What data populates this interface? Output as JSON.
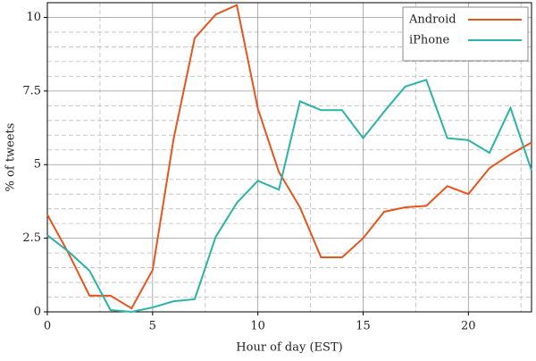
{
  "chart_data": {
    "type": "line",
    "xlabel": "Hour of day (EST)",
    "ylabel": "% of tweets",
    "x": [
      0,
      1,
      2,
      3,
      4,
      5,
      6,
      7,
      8,
      9,
      10,
      11,
      12,
      13,
      14,
      15,
      16,
      17,
      18,
      19,
      20,
      21,
      22,
      23
    ],
    "series": [
      {
        "name": "Android",
        "color": "#e8541e",
        "values": [
          3.3,
          2.0,
          0.55,
          0.55,
          0.12,
          1.42,
          5.88,
          9.3,
          10.1,
          10.42,
          6.9,
          4.75,
          3.55,
          1.85,
          1.85,
          2.5,
          3.4,
          3.55,
          3.6,
          4.27,
          4.0,
          4.88,
          5.35,
          5.75
        ]
      },
      {
        "name": "iPhone",
        "color": "#2ab3a6",
        "values": [
          2.6,
          2.05,
          1.4,
          0.06,
          0.0,
          0.15,
          0.36,
          0.43,
          2.55,
          3.7,
          4.45,
          4.15,
          7.15,
          6.85,
          6.85,
          5.9,
          6.8,
          7.65,
          7.88,
          5.9,
          5.83,
          5.4,
          6.93,
          4.8
        ]
      }
    ],
    "xlim": [
      0,
      23
    ],
    "ylim": [
      0,
      10.5
    ],
    "xticks": [
      0,
      5,
      10,
      15,
      20
    ],
    "yticks": [
      0,
      2.5,
      5,
      7.5,
      10
    ],
    "minor_xticks": [
      2.5,
      7.5,
      12.5,
      17.5,
      22.5
    ],
    "minor_yticks": [
      0.5,
      1,
      1.5,
      2,
      3,
      3.5,
      4,
      4.5,
      5.5,
      6,
      6.5,
      7,
      8,
      8.5,
      9,
      9.5
    ],
    "grid": true,
    "legend": "upper right"
  }
}
